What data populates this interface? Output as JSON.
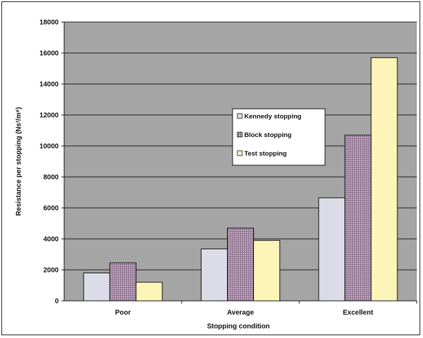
{
  "chart_data": {
    "type": "bar",
    "title": "",
    "xlabel": "Stopping condition",
    "ylabel": "Resistance per stopping (Ns²/m⁸)",
    "categories": [
      "Poor",
      "Average",
      "Excellent"
    ],
    "series": [
      {
        "name": "Kennedy stopping",
        "values": [
          1800,
          3350,
          6650
        ],
        "color": "#dcdce8"
      },
      {
        "name": "Block stopping",
        "values": [
          2450,
          4700,
          10700
        ],
        "color": "#c4a8c4"
      },
      {
        "name": "Test stopping",
        "values": [
          1200,
          3900,
          15700
        ],
        "color": "#fdf4b8"
      }
    ],
    "ylim": [
      0,
      18000
    ],
    "yticks": [
      0,
      2000,
      4000,
      6000,
      8000,
      10000,
      12000,
      14000,
      16000,
      18000
    ],
    "grid": true,
    "legend_position": "center-right",
    "plot_background": "#a5a5a5"
  }
}
